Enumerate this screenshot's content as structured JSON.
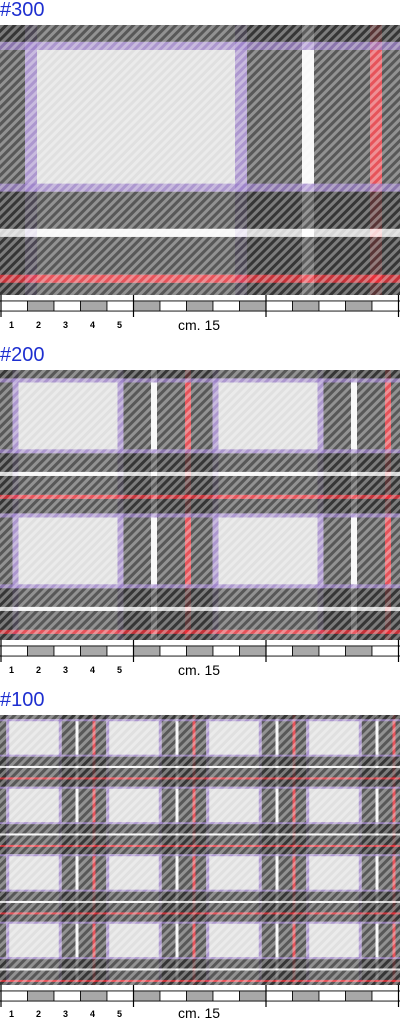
{
  "sections": [
    {
      "label": "#300",
      "repeat": 1
    },
    {
      "label": "#200",
      "repeat": 2
    },
    {
      "label": "#100",
      "repeat": 4
    }
  ],
  "ruler": {
    "numbers": [
      "1",
      "2",
      "3",
      "4",
      "5"
    ],
    "unit_label": "cm. 15"
  },
  "colors": {
    "label": "#1e2fd0",
    "light_grey": "#e0e0e0",
    "dark": "#2b2b2b",
    "purple": "#9b7fc9",
    "red": "#e8242e",
    "white": "#ffffff",
    "ruler_fill": "#a8a8a8"
  }
}
